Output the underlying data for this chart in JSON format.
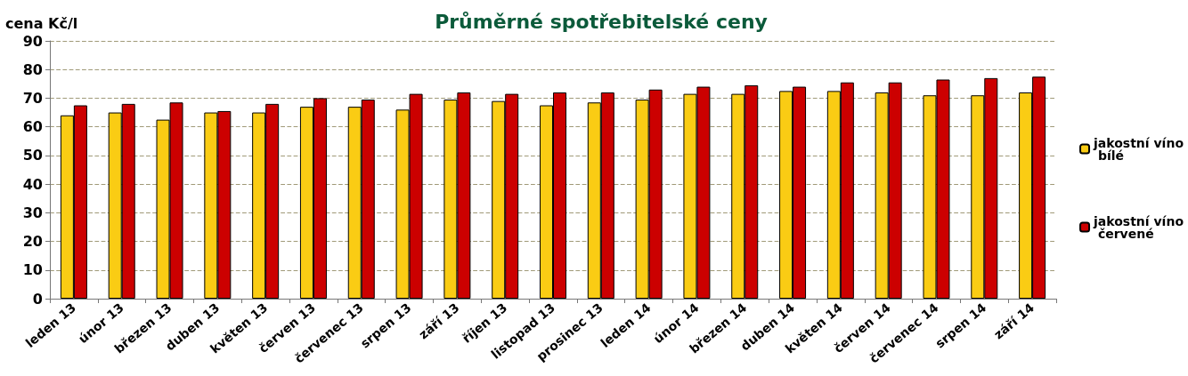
{
  "chart_data": {
    "type": "bar",
    "title": "Průměrné spotřebitelské ceny",
    "ylabel": "cena Kč/l",
    "categories": [
      "leden 13",
      "únor 13",
      "březen 13",
      "duben 13",
      "květen 13",
      "červen 13",
      "červenec 13",
      "srpen 13",
      "září 13",
      "říjen 13",
      "listopad 13",
      "prosinec 13",
      "leden 14",
      "únor 14",
      "březen 14",
      "duben 14",
      "květen 14",
      "červen 14",
      "červenec 14",
      "srpen 14",
      "září 14"
    ],
    "series": [
      {
        "name": "jakostní víno bílé",
        "color": "#facc14",
        "values": [
          64,
          65,
          62.5,
          65,
          65,
          67,
          67,
          66,
          69.5,
          69,
          67.5,
          68.5,
          69.5,
          71.5,
          71.5,
          72.5,
          72.5,
          72,
          71,
          71,
          72
        ]
      },
      {
        "name": "jakostní víno červené",
        "color": "#cc0000",
        "values": [
          67.5,
          68,
          68.5,
          65.5,
          68,
          70,
          69.5,
          71.5,
          72,
          71.5,
          72,
          72,
          73,
          74,
          74.5,
          74,
          75.5,
          75.5,
          76.5,
          77,
          77.5
        ]
      }
    ],
    "ylim": [
      0,
      90
    ],
    "yticks": [
      0,
      10,
      20,
      30,
      40,
      50,
      60,
      70,
      80,
      90
    ],
    "grid": "y",
    "legend": "right"
  }
}
